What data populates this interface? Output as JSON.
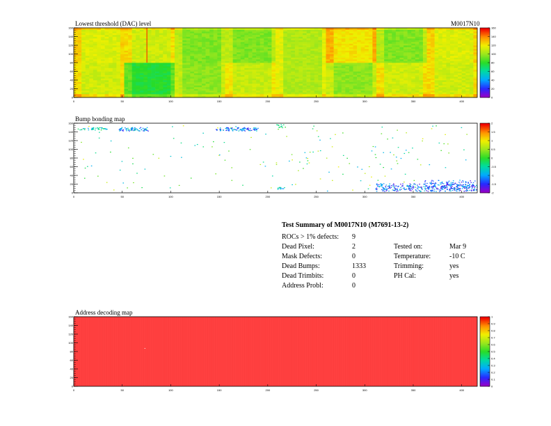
{
  "module_id": "M0017N10",
  "panels": {
    "threshold": {
      "title": "Lowest threshold (DAC) level"
    },
    "bump": {
      "title": "Bump bonding map"
    },
    "address": {
      "title": "Address decoding map"
    }
  },
  "summary": {
    "heading": "Test Summary of M0017N10 (M7691-13-2)",
    "rows": [
      {
        "label": "ROCs > 1% defects:",
        "value": "9",
        "label2": "",
        "value2": ""
      },
      {
        "label": "Dead Pixel:",
        "value": "2",
        "label2": "Tested on:",
        "value2": "Mar 9"
      },
      {
        "label": "Mask Defects:",
        "value": "0",
        "label2": "Temperature:",
        "value2": "-10 C"
      },
      {
        "label": "Dead Bumps:",
        "value": "1333",
        "label2": "Trimming:",
        "value2": "yes"
      },
      {
        "label": "Dead Trimbits:",
        "value": "0",
        "label2": "PH Cal:",
        "value2": "yes"
      },
      {
        "label": "Address Probl:",
        "value": "0",
        "label2": "",
        "value2": ""
      }
    ]
  },
  "chart_data": [
    {
      "type": "heatmap",
      "title": "Lowest threshold (DAC) level",
      "xlim": [
        0,
        416
      ],
      "ylim": [
        0,
        160
      ],
      "x_ticks": [
        "0",
        "50",
        "100",
        "150",
        "200",
        "250",
        "300",
        "350",
        "400"
      ],
      "y_ticks": [
        "0",
        "20",
        "40",
        "60",
        "80",
        "100",
        "120",
        "140",
        "160"
      ],
      "zlim": [
        0,
        160
      ],
      "z_ticks": [
        "0",
        "20",
        "40",
        "60",
        "80",
        "100",
        "120",
        "140",
        "160"
      ],
      "roc_levels": {
        "top": [
          115,
          112,
          95,
          95,
          105,
          122,
          95,
          115
        ],
        "bottom": [
          112,
          78,
          98,
          110,
          105,
          98,
          112,
          112
        ]
      },
      "hot_column_x": 75
    },
    {
      "type": "heatmap",
      "title": "Bump bonding map",
      "xlim": [
        0,
        416
      ],
      "ylim": [
        0,
        160
      ],
      "x_ticks": [
        "0",
        "50",
        "100",
        "150",
        "200",
        "250",
        "300",
        "350",
        "400"
      ],
      "y_ticks": [
        "0",
        "20",
        "40",
        "60",
        "80",
        "100",
        "120",
        "140",
        "160"
      ],
      "zlim": [
        -2,
        2
      ],
      "z_ticks": [
        "-2",
        "-1.5",
        "-1",
        "-0.5",
        "0",
        "0.5",
        "1",
        "1.5",
        "2"
      ]
    },
    {
      "type": "heatmap",
      "title": "Address decoding map",
      "xlim": [
        0,
        416
      ],
      "ylim": [
        0,
        160
      ],
      "x_ticks": [
        "0",
        "50",
        "100",
        "150",
        "200",
        "250",
        "300",
        "350",
        "400"
      ],
      "y_ticks": [
        "0",
        "20",
        "40",
        "60",
        "80",
        "100",
        "120",
        "140",
        "160"
      ],
      "zlim": [
        0,
        1
      ],
      "z_ticks": [
        "0",
        "0.1",
        "0.2",
        "0.3",
        "0.4",
        "0.5",
        "0.6",
        "0.7",
        "0.8",
        "0.9",
        "1"
      ],
      "uniform_value": 1
    }
  ]
}
